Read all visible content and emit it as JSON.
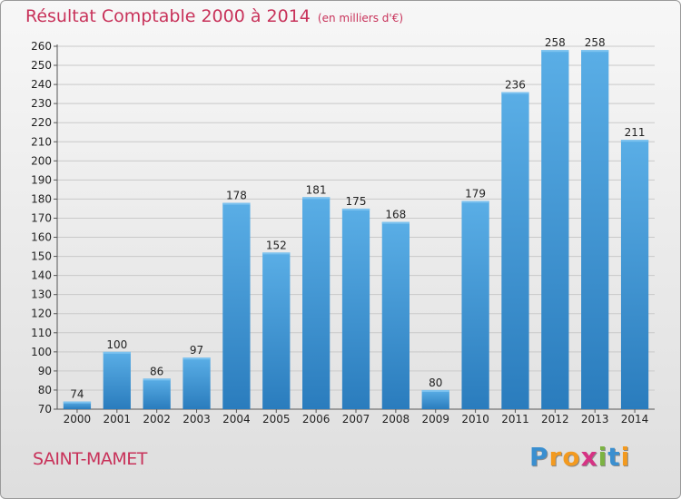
{
  "title": "Résultat Comptable 2000 à 2014",
  "subtitle": "(en milliers d'€)",
  "commune": "SAINT-MAMET",
  "brand": {
    "letters": [
      "P",
      "r",
      "o",
      "x",
      "i",
      "t",
      "i"
    ],
    "colors": [
      "#3a8fd0",
      "#f39a1f",
      "#f39a1f",
      "#d63384",
      "#7cb342",
      "#3a8fd0",
      "#f39a1f"
    ]
  },
  "colors": {
    "accent": "#c8325a",
    "bar_top": "#5aaee6",
    "bar_bottom": "#2a7cbd"
  },
  "chart_data": {
    "type": "bar",
    "title": "Résultat Comptable 2000 à 2014",
    "subtitle": "(en milliers d'€)",
    "categories": [
      "2000",
      "2001",
      "2002",
      "2003",
      "2004",
      "2005",
      "2006",
      "2007",
      "2008",
      "2009",
      "2010",
      "2011",
      "2012",
      "2013",
      "2014"
    ],
    "values": [
      74,
      100,
      86,
      97,
      178,
      152,
      181,
      175,
      168,
      80,
      179,
      236,
      258,
      258,
      211
    ],
    "ylim": [
      70,
      260
    ],
    "yticks": [
      70,
      80,
      90,
      100,
      110,
      120,
      130,
      140,
      150,
      160,
      170,
      180,
      190,
      200,
      210,
      220,
      230,
      240,
      250,
      260
    ],
    "grid": true,
    "legend": "none"
  }
}
